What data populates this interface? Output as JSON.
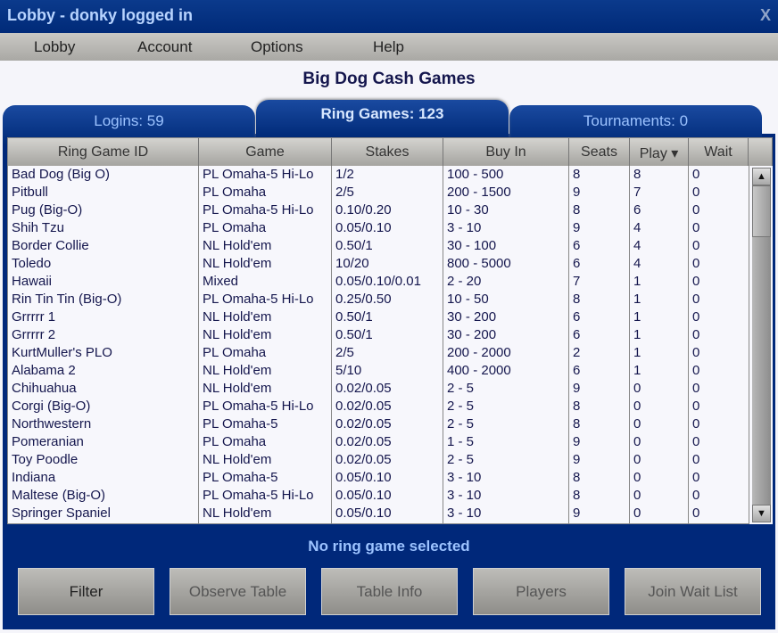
{
  "window": {
    "title": "Lobby - donky logged in",
    "close": "X"
  },
  "menu": [
    "Lobby",
    "Account",
    "Options",
    "Help"
  ],
  "heading": "Big Dog Cash Games",
  "tabs": [
    {
      "label": "Logins: 59",
      "active": false
    },
    {
      "label": "Ring Games: 123",
      "active": true
    },
    {
      "label": "Tournaments: 0",
      "active": false
    }
  ],
  "table": {
    "columns": [
      "Ring Game ID",
      "Game",
      "Stakes",
      "Buy In",
      "Seats",
      "Play ▾",
      "Wait"
    ],
    "sorted_column": "Play",
    "rows": [
      [
        "Bad Dog (Big O)",
        "PL Omaha-5 Hi-Lo",
        "1/2",
        "100 - 500",
        "8",
        "8",
        "0"
      ],
      [
        "Pitbull",
        "PL Omaha",
        "2/5",
        "200 - 1500",
        "9",
        "7",
        "0"
      ],
      [
        "Pug (Big-O)",
        "PL Omaha-5 Hi-Lo",
        "0.10/0.20",
        "10 - 30",
        "8",
        "6",
        "0"
      ],
      [
        "Shih Tzu",
        "PL Omaha",
        "0.05/0.10",
        "3 - 10",
        "9",
        "4",
        "0"
      ],
      [
        "Border Collie",
        "NL Hold'em",
        "0.50/1",
        "30 - 100",
        "6",
        "4",
        "0"
      ],
      [
        "Toledo",
        "NL Hold'em",
        "10/20",
        "800 - 5000",
        "6",
        "4",
        "0"
      ],
      [
        "Hawaii",
        "Mixed",
        "0.05/0.10/0.01",
        "2 - 20",
        "7",
        "1",
        "0"
      ],
      [
        "Rin Tin Tin (Big-O)",
        "PL Omaha-5 Hi-Lo",
        "0.25/0.50",
        "10 - 50",
        "8",
        "1",
        "0"
      ],
      [
        "Grrrrr 1",
        "NL Hold'em",
        "0.50/1",
        "30 - 200",
        "6",
        "1",
        "0"
      ],
      [
        "Grrrrr 2",
        "NL Hold'em",
        "0.50/1",
        "30 - 200",
        "6",
        "1",
        "0"
      ],
      [
        "KurtMuller's PLO",
        "PL Omaha",
        "2/5",
        "200 - 2000",
        "2",
        "1",
        "0"
      ],
      [
        "Alabama 2",
        "NL Hold'em",
        "5/10",
        "400 - 2000",
        "6",
        "1",
        "0"
      ],
      [
        "Chihuahua",
        "NL Hold'em",
        "0.02/0.05",
        "2 - 5",
        "9",
        "0",
        "0"
      ],
      [
        "Corgi (Big-O)",
        "PL Omaha-5 Hi-Lo",
        "0.02/0.05",
        "2 - 5",
        "8",
        "0",
        "0"
      ],
      [
        "Northwestern",
        "PL Omaha-5",
        "0.02/0.05",
        "2 - 5",
        "8",
        "0",
        "0"
      ],
      [
        "Pomeranian",
        "PL Omaha",
        "0.02/0.05",
        "1 - 5",
        "9",
        "0",
        "0"
      ],
      [
        "Toy Poodle",
        "NL Hold'em",
        "0.02/0.05",
        "2 - 5",
        "9",
        "0",
        "0"
      ],
      [
        "Indiana",
        "PL Omaha-5",
        "0.05/0.10",
        "3 - 10",
        "8",
        "0",
        "0"
      ],
      [
        "Maltese (Big-O)",
        "PL Omaha-5 Hi-Lo",
        "0.05/0.10",
        "3 - 10",
        "8",
        "0",
        "0"
      ],
      [
        "Springer Spaniel",
        "NL Hold'em",
        "0.05/0.10",
        "3 - 10",
        "9",
        "0",
        "0"
      ]
    ]
  },
  "status": "No ring game selected",
  "buttons": [
    {
      "label": "Filter",
      "enabled": true
    },
    {
      "label": "Observe Table",
      "enabled": false
    },
    {
      "label": "Table Info",
      "enabled": false
    },
    {
      "label": "Players",
      "enabled": false
    },
    {
      "label": "Join Wait List",
      "enabled": false
    }
  ],
  "colors": {
    "panel": "#00287a",
    "status_text": "#9cc3ff",
    "cell_text": "#14164d"
  }
}
